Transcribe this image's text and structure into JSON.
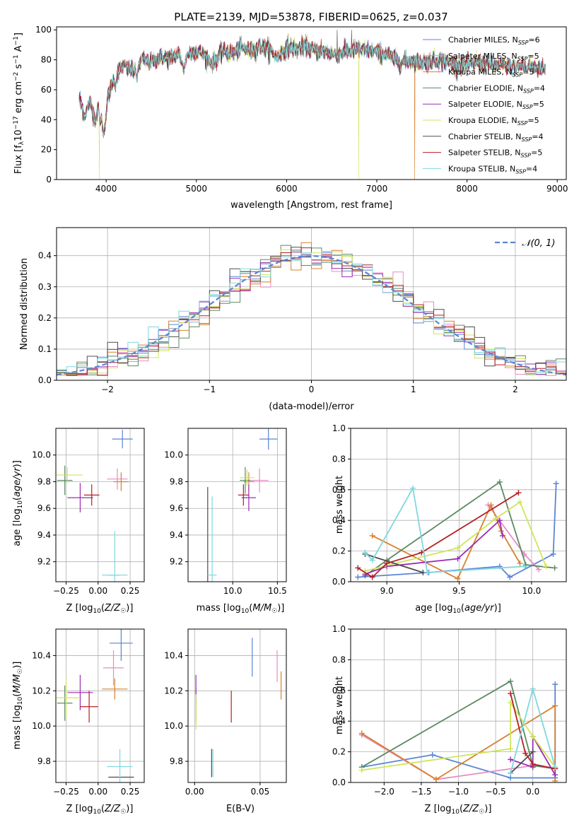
{
  "figure_title": "PLATE=2139, MJD=53878, FIBERID=0625, z=0.037",
  "colors": [
    "#5b84d6",
    "#e58cc4",
    "#d7802f",
    "#5b8a63",
    "#9a2bb3",
    "#cfe55a",
    "#4d4d4d",
    "#b51f23",
    "#7fd7dd"
  ],
  "legend": [
    "Chabrier MILES, N$_{SSP}$=6",
    "Salpeter MILES, N$_{SSP}$=5",
    "Kroupa MILES, N$_{SSP}$=5",
    "Chabrier ELODIE, N$_{SSP}$=4",
    "Salpeter ELODIE, N$_{SSP}$=5",
    "Kroupa ELODIE, N$_{SSP}$=5",
    "Chabrier STELIB, N$_{SSP}$=4",
    "Salpeter STELIB, N$_{SSP}$=5",
    "Kroupa STELIB, N$_{SSP}$=4"
  ],
  "legend_display": [
    {
      "base": "Chabrier MILES, N",
      "sub": "SSP",
      "tail": "=6"
    },
    {
      "base": "Salpeter MILES, N",
      "sub": "SSP",
      "tail": "=5"
    },
    {
      "base": "Kroupa MILES, N",
      "sub": "SSP",
      "tail": "=5"
    },
    {
      "base": "Chabrier ELODIE, N",
      "sub": "SSP",
      "tail": "=4"
    },
    {
      "base": "Salpeter ELODIE, N",
      "sub": "SSP",
      "tail": "=5"
    },
    {
      "base": "Kroupa ELODIE, N",
      "sub": "SSP",
      "tail": "=5"
    },
    {
      "base": "Chabrier STELIB, N",
      "sub": "SSP",
      "tail": "=4"
    },
    {
      "base": "Salpeter STELIB, N",
      "sub": "SSP",
      "tail": "=5"
    },
    {
      "base": "Kroupa STELIB, N",
      "sub": "SSP",
      "tail": "=4"
    }
  ],
  "chart_data": [
    {
      "id": "spectrum",
      "type": "line",
      "title": "PLATE=2139, MJD=53878, FIBERID=0625, z=0.037",
      "xlabel": "wavelength [Angstrom, rest frame]",
      "ylabel": "Flux [f_λ 10^-17 erg cm^-2 s^-1 A^-1]",
      "xlim": [
        3450,
        9100
      ],
      "ylim": [
        0,
        102
      ],
      "xticks": [
        4000,
        5000,
        6000,
        7000,
        8000,
        9000
      ],
      "yticks": [
        0,
        20,
        40,
        60,
        80,
        100
      ],
      "spectrum_anchors": [
        [
          3700,
          58
        ],
        [
          3760,
          44
        ],
        [
          3820,
          52
        ],
        [
          3880,
          40
        ],
        [
          3930,
          52
        ],
        [
          3970,
          30
        ],
        [
          4020,
          55
        ],
        [
          4100,
          70
        ],
        [
          4200,
          76
        ],
        [
          4300,
          72
        ],
        [
          4400,
          80
        ],
        [
          4500,
          78
        ],
        [
          4600,
          82
        ],
        [
          4700,
          80
        ],
        [
          4800,
          84
        ],
        [
          4861,
          76
        ],
        [
          4900,
          84
        ],
        [
          5000,
          86
        ],
        [
          5100,
          83
        ],
        [
          5175,
          78
        ],
        [
          5300,
          86
        ],
        [
          5400,
          84
        ],
        [
          5500,
          88
        ],
        [
          5600,
          86
        ],
        [
          5700,
          89
        ],
        [
          5800,
          87
        ],
        [
          5893,
          82
        ],
        [
          6000,
          88
        ],
        [
          6100,
          87
        ],
        [
          6200,
          89
        ],
        [
          6300,
          86
        ],
        [
          6400,
          86
        ],
        [
          6500,
          84
        ],
        [
          6563,
          84
        ],
        [
          6700,
          86
        ],
        [
          6800,
          87
        ],
        [
          6900,
          86
        ],
        [
          7000,
          85
        ],
        [
          7100,
          84
        ],
        [
          7200,
          80
        ],
        [
          7300,
          78
        ],
        [
          7400,
          80
        ],
        [
          7500,
          78
        ],
        [
          7600,
          79
        ],
        [
          7700,
          80
        ],
        [
          7800,
          78
        ],
        [
          7900,
          77
        ],
        [
          8000,
          76
        ],
        [
          8100,
          78
        ],
        [
          8200,
          78
        ],
        [
          8300,
          76
        ],
        [
          8400,
          76
        ],
        [
          8500,
          76
        ],
        [
          8600,
          76
        ],
        [
          8700,
          75
        ],
        [
          8800,
          75
        ],
        [
          8860,
          74
        ]
      ],
      "absorption_dips": [
        [
          3934,
          36
        ],
        [
          3969,
          32
        ],
        [
          4102,
          60
        ],
        [
          4340,
          66
        ],
        [
          4861,
          72
        ],
        [
          5175,
          76
        ],
        [
          5893,
          80
        ],
        [
          6563,
          82
        ],
        [
          8498,
          74
        ],
        [
          8542,
          72
        ],
        [
          8662,
          72
        ]
      ],
      "glitches": [
        {
          "series": 5,
          "x": 3925,
          "y": 0
        },
        {
          "series": 5,
          "x": 6800,
          "y": 0
        },
        {
          "series": 2,
          "x": 7420,
          "y": 0
        },
        {
          "series": 6,
          "x": 6560,
          "y": 100
        },
        {
          "series": 6,
          "x": 6720,
          "y": 100
        }
      ],
      "legend_position": "top-right"
    },
    {
      "id": "residuals",
      "type": "histogram",
      "xlabel": "(data-model)/error",
      "ylabel": "Normed distribution",
      "xlim": [
        -2.5,
        2.5
      ],
      "ylim": [
        0,
        0.49
      ],
      "xticks": [
        -2,
        -1,
        0,
        1,
        2
      ],
      "yticks": [
        0,
        0.1,
        0.2,
        0.3,
        0.4
      ],
      "bin_width": 0.1,
      "bin_start": -2.5,
      "reference_curve": "$\\mathcal{N}(0,1)$",
      "reference_label_parts": {
        "main": "𝒩",
        "args": "(0, 1)"
      },
      "reference_color": "#5b84d6",
      "legend_position": "top-right"
    },
    {
      "id": "age_vs_Z",
      "type": "errorbar",
      "xlabel": "Z [log10(Z/Z☉)]",
      "ylabel": "age [log10(age/yr)]",
      "xlim": [
        -0.33,
        0.36
      ],
      "ylim": [
        9.05,
        10.2
      ],
      "xticks": [
        -0.25,
        0.0,
        0.25
      ],
      "yticks": [
        9.2,
        9.4,
        9.6,
        9.8,
        10.0
      ],
      "points": [
        {
          "series": 0,
          "x": 0.19,
          "y": 10.12,
          "xerr": 0.08,
          "yerr": 0.07
        },
        {
          "series": 1,
          "x": 0.15,
          "y": 9.82,
          "xerr": 0.08,
          "yerr": 0.08
        },
        {
          "series": 2,
          "x": 0.18,
          "y": 9.8,
          "xerr": 0.06,
          "yerr": 0.07
        },
        {
          "series": 3,
          "x": -0.26,
          "y": 9.81,
          "xerr": 0.06,
          "yerr": 0.11
        },
        {
          "series": 4,
          "x": -0.14,
          "y": 9.68,
          "xerr": 0.1,
          "yerr": 0.11
        },
        {
          "series": 5,
          "x": -0.24,
          "y": 9.85,
          "xerr": 0.12,
          "yerr": 0.06
        },
        {
          "series": 6,
          "x": 0.12,
          "y": 9.1,
          "xerr": 0.05,
          "yerr": 0.0
        },
        {
          "series": 7,
          "x": -0.05,
          "y": 9.7,
          "xerr": 0.06,
          "yerr": 0.08
        },
        {
          "series": 8,
          "x": 0.13,
          "y": 9.1,
          "xerr": 0.1,
          "yerr": 0.33
        }
      ]
    },
    {
      "id": "age_vs_mass",
      "type": "errorbar",
      "xlabel": "mass [log10(M/M☉)]",
      "ylabel": "",
      "xlim": [
        9.5,
        10.6
      ],
      "ylim": [
        9.05,
        10.2
      ],
      "xticks": [
        10.0,
        10.5
      ],
      "yticks": [
        9.2,
        9.4,
        9.6,
        9.8,
        10.0
      ],
      "points": [
        {
          "series": 0,
          "x": 10.4,
          "y": 10.12,
          "xerr": 0.1,
          "yerr": 0.08
        },
        {
          "series": 1,
          "x": 10.3,
          "y": 9.81,
          "xerr": 0.1,
          "yerr": 0.09
        },
        {
          "series": 2,
          "x": 10.18,
          "y": 9.8,
          "xerr": 0.06,
          "yerr": 0.07
        },
        {
          "series": 3,
          "x": 10.14,
          "y": 9.81,
          "xerr": 0.06,
          "yerr": 0.1
        },
        {
          "series": 4,
          "x": 10.18,
          "y": 9.68,
          "xerr": 0.08,
          "yerr": 0.1
        },
        {
          "series": 5,
          "x": 10.16,
          "y": 9.83,
          "xerr": 0.08,
          "yerr": 0.06
        },
        {
          "series": 6,
          "x": 9.72,
          "y": 9.1,
          "xerr": 0.0,
          "yerr": 0.66
        },
        {
          "series": 7,
          "x": 10.12,
          "y": 9.7,
          "xerr": 0.06,
          "yerr": 0.08
        },
        {
          "series": 8,
          "x": 9.77,
          "y": 9.1,
          "xerr": 0.05,
          "yerr": 0.59
        }
      ]
    },
    {
      "id": "weight_vs_age",
      "type": "line",
      "xlabel": "age [log10(age/yr)]",
      "ylabel": "mass weight",
      "xlim": [
        8.75,
        10.24
      ],
      "ylim": [
        0,
        1.0
      ],
      "xticks": [
        9.0,
        9.5,
        10.0
      ],
      "yticks": [
        0.0,
        0.2,
        0.4,
        0.6,
        0.8,
        1.0
      ],
      "series": [
        {
          "series": 0,
          "x": [
            8.8,
            9.29,
            9.78,
            9.85,
            10.15,
            10.17
          ],
          "y": [
            0.03,
            0.06,
            0.1,
            0.03,
            0.18,
            0.64
          ]
        },
        {
          "series": 1,
          "x": [
            9.7,
            9.95,
            10.05
          ],
          "y": [
            0.5,
            0.18,
            0.08
          ]
        },
        {
          "series": 2,
          "x": [
            8.9,
            9.49,
            9.72,
            9.79,
            9.92
          ],
          "y": [
            0.3,
            0.02,
            0.5,
            0.33,
            0.12
          ]
        },
        {
          "series": 3,
          "x": [
            8.85,
            9.0,
            9.78,
            9.96,
            10.16
          ],
          "y": [
            0.04,
            0.14,
            0.65,
            0.11,
            0.09
          ]
        },
        {
          "series": 4,
          "x": [
            8.85,
            9.0,
            9.49,
            9.78,
            9.8
          ],
          "y": [
            0.05,
            0.1,
            0.15,
            0.4,
            0.3
          ]
        },
        {
          "series": 5,
          "x": [
            8.85,
            9.49,
            9.75,
            9.92,
            10.1
          ],
          "y": [
            0.07,
            0.22,
            0.41,
            0.52,
            0.1
          ]
        },
        {
          "series": 6,
          "x": [
            8.85,
            9.25
          ],
          "y": [
            0.18,
            0.06
          ]
        },
        {
          "series": 7,
          "x": [
            8.8,
            8.9,
            9.0,
            9.24,
            9.91
          ],
          "y": [
            0.09,
            0.03,
            0.12,
            0.19,
            0.58
          ]
        },
        {
          "series": 8,
          "x": [
            8.85,
            8.9,
            9.18,
            9.28,
            9.95
          ],
          "y": [
            0.19,
            0.14,
            0.61,
            0.06,
            0.1
          ]
        }
      ]
    },
    {
      "id": "mass_vs_Z",
      "type": "errorbar",
      "xlabel": "Z [log10(Z/Z☉)]",
      "ylabel": "mass [log10(M/M☉)]",
      "xlim": [
        -0.33,
        0.36
      ],
      "ylim": [
        9.68,
        10.55
      ],
      "xticks": [
        -0.25,
        0.0,
        0.25
      ],
      "yticks": [
        9.8,
        10.0,
        10.2,
        10.4
      ],
      "points": [
        {
          "series": 0,
          "x": 0.18,
          "y": 10.47,
          "xerr": 0.09,
          "yerr": 0.1
        },
        {
          "series": 1,
          "x": 0.12,
          "y": 10.33,
          "xerr": 0.08,
          "yerr": 0.1
        },
        {
          "series": 2,
          "x": 0.13,
          "y": 10.21,
          "xerr": 0.1,
          "yerr": 0.06
        },
        {
          "series": 3,
          "x": -0.26,
          "y": 10.13,
          "xerr": 0.06,
          "yerr": 0.1
        },
        {
          "series": 4,
          "x": -0.14,
          "y": 10.19,
          "xerr": 0.1,
          "yerr": 0.1
        },
        {
          "series": 5,
          "x": -0.25,
          "y": 10.16,
          "xerr": 0.1,
          "yerr": 0.11
        },
        {
          "series": 6,
          "x": 0.18,
          "y": 9.71,
          "xerr": 0.1,
          "yerr": 0.0
        },
        {
          "series": 7,
          "x": -0.07,
          "y": 10.11,
          "xerr": 0.07,
          "yerr": 0.09
        },
        {
          "series": 8,
          "x": 0.17,
          "y": 9.77,
          "xerr": 0.1,
          "yerr": 0.1
        }
      ]
    },
    {
      "id": "mass_vs_EBV",
      "type": "errorbar",
      "xlabel": "E(B-V)",
      "ylabel": "",
      "xlim": [
        -0.005,
        0.07
      ],
      "ylim": [
        9.68,
        10.55
      ],
      "xticks": [
        0.0,
        0.05
      ],
      "yticks": [
        9.8,
        10.0,
        10.2,
        10.4
      ],
      "points": [
        {
          "series": 0,
          "x": 0.044,
          "y": 10.39,
          "xerr": 0.0,
          "yerr": 0.11
        },
        {
          "series": 1,
          "x": 0.063,
          "y": 10.34,
          "xerr": 0.0,
          "yerr": 0.09
        },
        {
          "series": 2,
          "x": 0.066,
          "y": 10.23,
          "xerr": 0.0,
          "yerr": 0.08
        },
        {
          "series": 3,
          "x": 0.001,
          "y": 10.12,
          "xerr": 0.0,
          "yerr": 0.1
        },
        {
          "series": 4,
          "x": 0.001,
          "y": 10.21,
          "xerr": 0.0,
          "yerr": 0.08
        },
        {
          "series": 5,
          "x": 0.001,
          "y": 10.08,
          "xerr": 0.0,
          "yerr": 0.1
        },
        {
          "series": 6,
          "x": 0.013,
          "y": 9.79,
          "xerr": 0.0,
          "yerr": 0.08
        },
        {
          "series": 7,
          "x": 0.028,
          "y": 10.11,
          "xerr": 0.0,
          "yerr": 0.09
        },
        {
          "series": 8,
          "x": 0.014,
          "y": 9.79,
          "xerr": 0.0,
          "yerr": 0.08
        }
      ]
    },
    {
      "id": "weight_vs_Z",
      "type": "line",
      "xlabel": "Z [log10(Z/Z☉)]",
      "ylabel": "mass weight",
      "xlim": [
        -2.45,
        0.45
      ],
      "ylim": [
        0,
        1.0
      ],
      "xticks": [
        -2.0,
        -1.5,
        -1.0,
        -0.5,
        0.0
      ],
      "yticks": [
        0.0,
        0.2,
        0.4,
        0.6,
        0.8,
        1.0
      ],
      "series": [
        {
          "series": 0,
          "x": [
            -2.3,
            -1.35,
            -0.3,
            0.3,
            0.3
          ],
          "y": [
            0.1,
            0.18,
            0.03,
            0.03,
            0.64
          ]
        },
        {
          "series": 1,
          "x": [
            -2.3,
            -1.3,
            0.0,
            0.3
          ],
          "y": [
            0.31,
            0.02,
            0.11,
            0.09
          ]
        },
        {
          "series": 2,
          "x": [
            -2.3,
            -1.3,
            0.3,
            0.3
          ],
          "y": [
            0.32,
            0.02,
            0.5,
            0.01
          ]
        },
        {
          "series": 3,
          "x": [
            -2.3,
            -0.3,
            0.0,
            0.3
          ],
          "y": [
            0.1,
            0.66,
            0.11,
            0.09
          ]
        },
        {
          "series": 4,
          "x": [
            -0.3,
            0.0,
            0.0,
            0.3
          ],
          "y": [
            0.15,
            0.1,
            0.3,
            0.05
          ]
        },
        {
          "series": 5,
          "x": [
            -2.3,
            -0.3,
            -0.3,
            0.0,
            0.3
          ],
          "y": [
            0.08,
            0.22,
            0.52,
            0.3,
            0.1
          ]
        },
        {
          "series": 6,
          "x": [
            -0.3,
            0.0
          ],
          "y": [
            0.06,
            0.2
          ]
        },
        {
          "series": 7,
          "x": [
            -0.3,
            -0.1,
            0.0,
            0.3
          ],
          "y": [
            0.58,
            0.19,
            0.12,
            0.09
          ]
        },
        {
          "series": 8,
          "x": [
            -0.3,
            0.0,
            0.3
          ],
          "y": [
            0.06,
            0.61,
            0.1
          ]
        }
      ]
    }
  ]
}
